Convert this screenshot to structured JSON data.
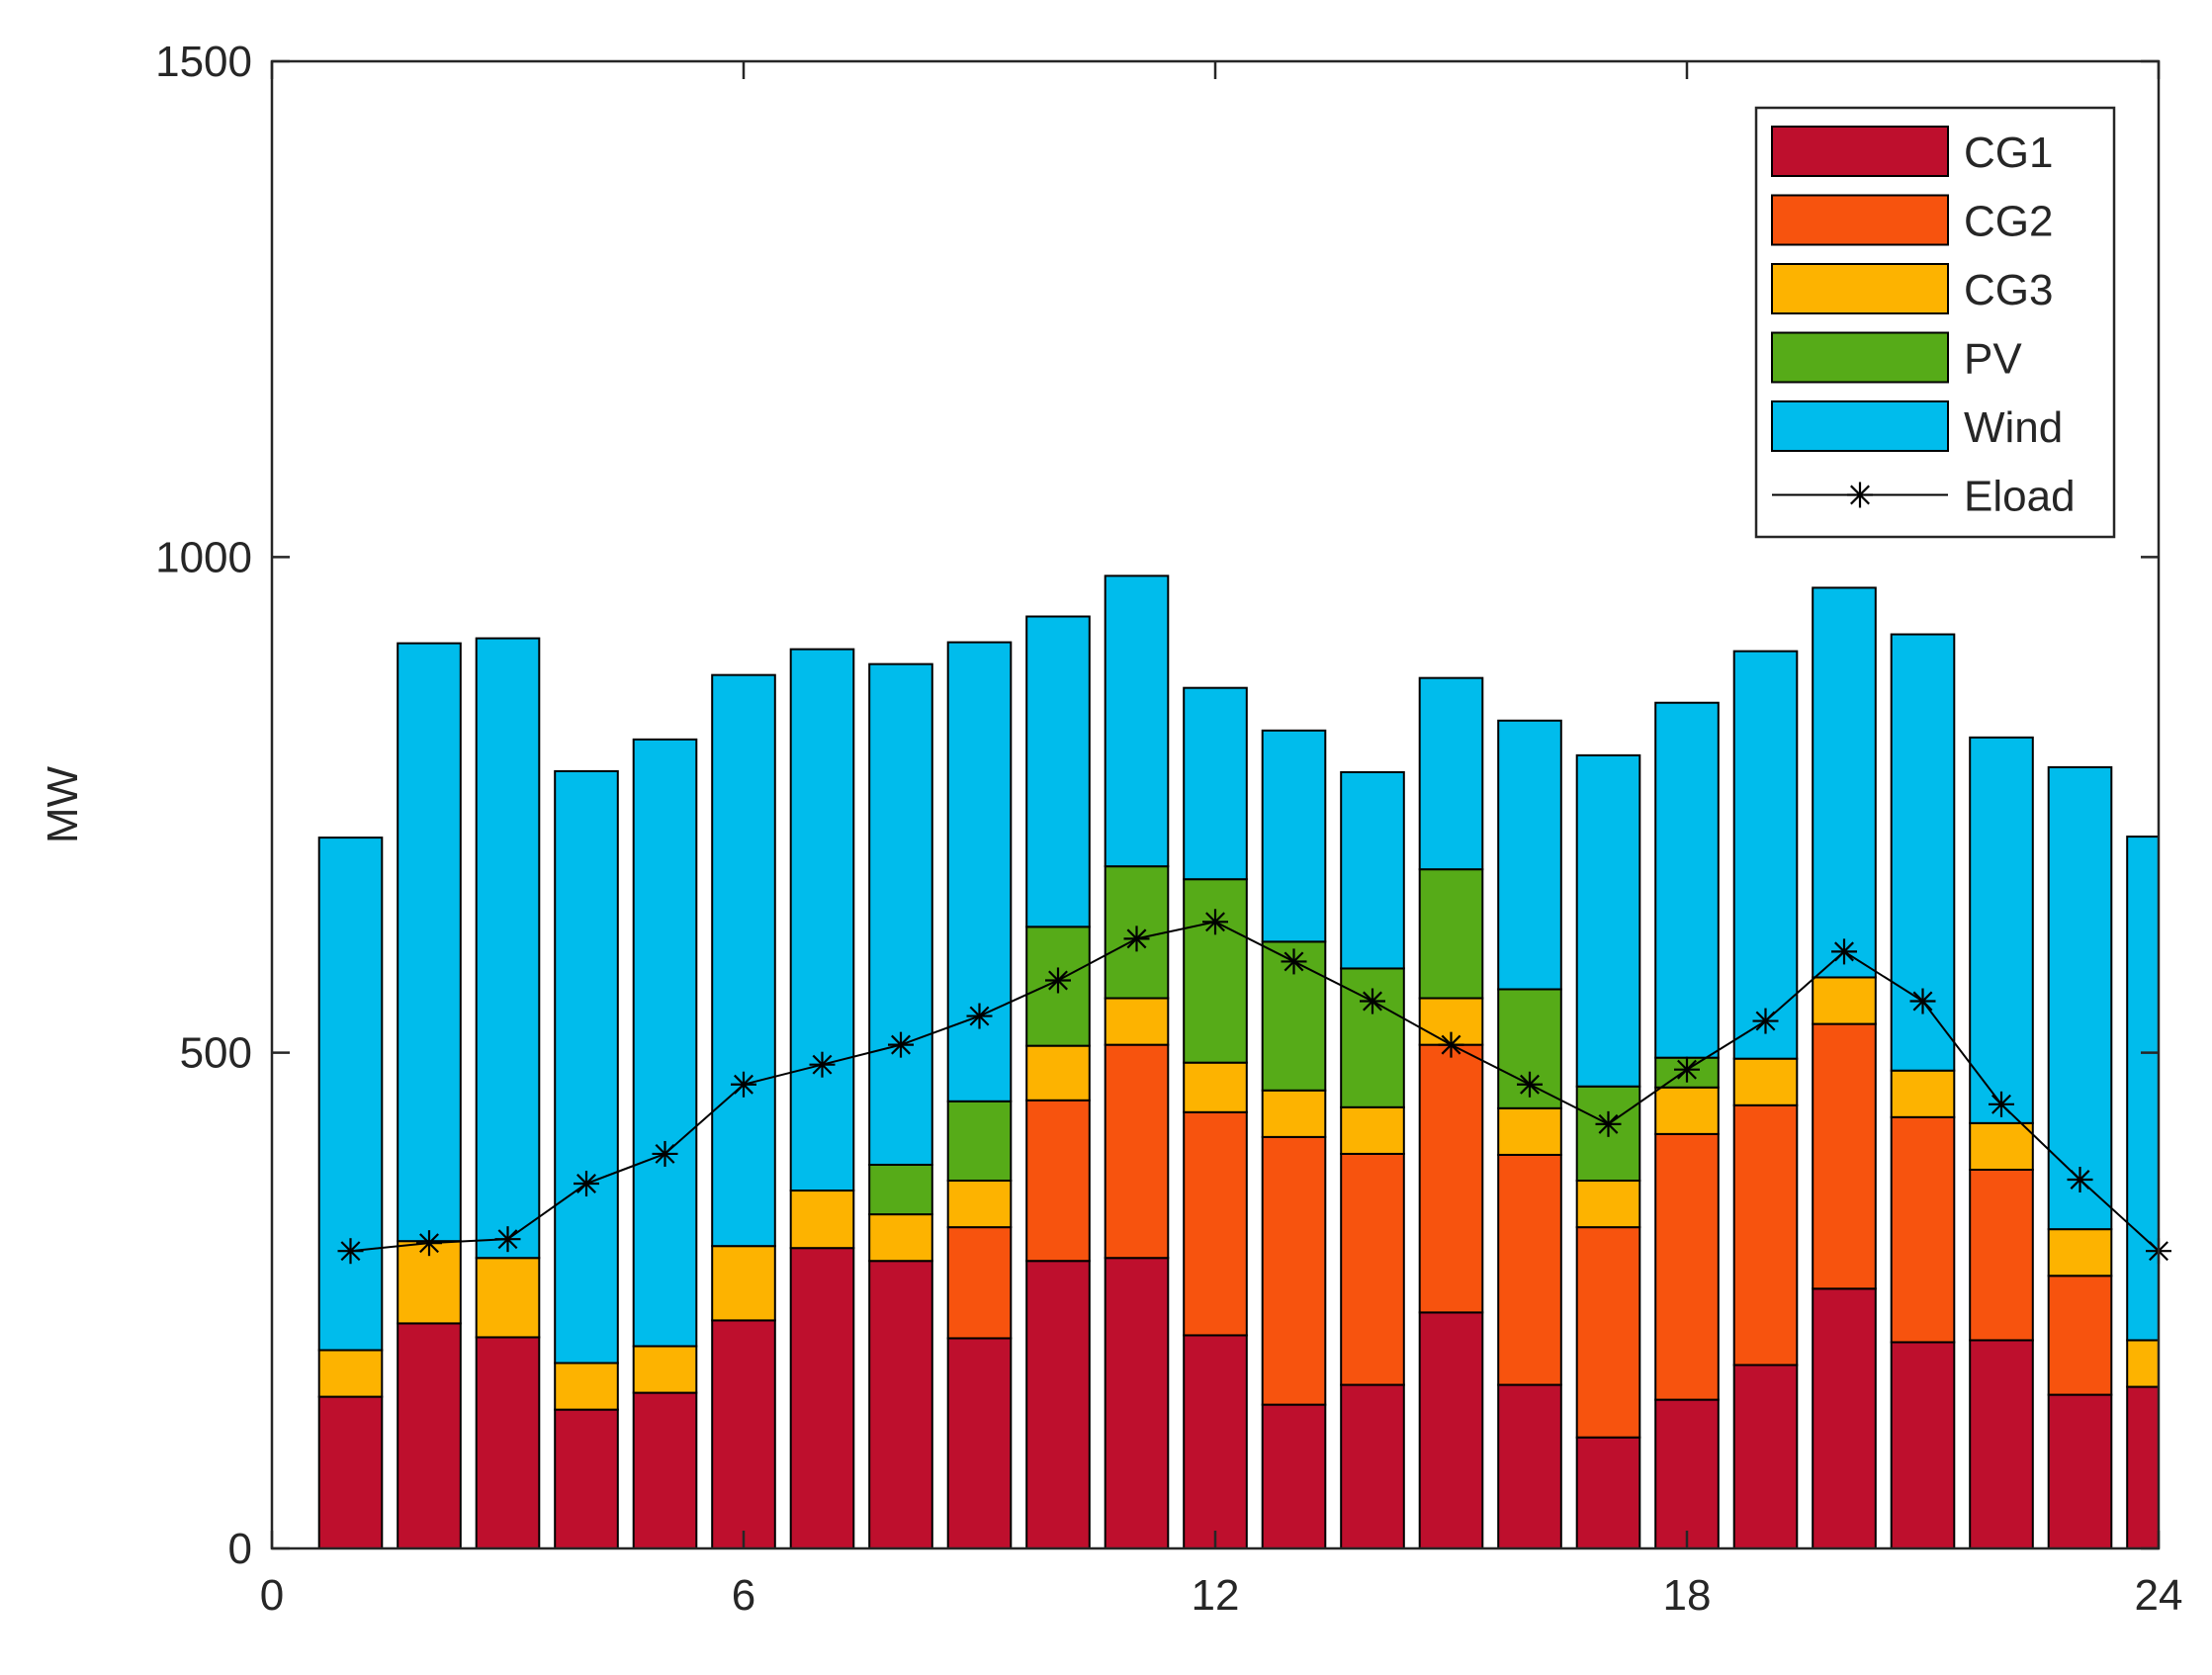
{
  "chart_data": {
    "type": "bar",
    "stacked": true,
    "title": "",
    "xlabel": "",
    "ylabel": "MW",
    "xlim": [
      0,
      24
    ],
    "ylim": [
      0,
      1500
    ],
    "xticks": [
      0,
      6,
      12,
      18,
      24
    ],
    "yticks": [
      0,
      500,
      1000,
      1500
    ],
    "legend_position": "top-right",
    "categories": [
      1,
      2,
      3,
      4,
      5,
      6,
      7,
      8,
      9,
      10,
      11,
      12,
      13,
      14,
      15,
      16,
      17,
      18,
      19,
      20,
      21,
      22,
      23,
      24
    ],
    "series": [
      {
        "name": "CG1",
        "color": "#BE0F2D",
        "values": [
          153,
          227,
          213,
          140,
          157,
          230,
          303,
          290,
          212,
          290,
          293,
          215,
          145,
          165,
          238,
          165,
          112,
          150,
          185,
          262,
          208,
          210,
          155,
          163
        ]
      },
      {
        "name": "CG2",
        "color": "#F7530E",
        "values": [
          0,
          0,
          0,
          0,
          0,
          0,
          0,
          0,
          112,
          162,
          215,
          225,
          270,
          233,
          270,
          232,
          212,
          268,
          262,
          267,
          227,
          172,
          120,
          0
        ]
      },
      {
        "name": "CG3",
        "color": "#FDB300",
        "values": [
          47,
          83,
          80,
          47,
          47,
          75,
          58,
          47,
          47,
          55,
          47,
          50,
          47,
          47,
          47,
          47,
          47,
          47,
          47,
          47,
          47,
          47,
          47,
          47
        ]
      },
      {
        "name": "PV",
        "color": "#56AB18",
        "values": [
          0,
          0,
          0,
          0,
          0,
          0,
          0,
          50,
          80,
          120,
          133,
          185,
          150,
          140,
          130,
          120,
          95,
          30,
          0,
          0,
          0,
          0,
          0,
          0
        ]
      },
      {
        "name": "Wind",
        "color": "#00BCEC",
        "values": [
          517,
          603,
          625,
          597,
          612,
          576,
          546,
          505,
          463,
          313,
          293,
          193,
          213,
          198,
          193,
          271,
          334,
          358,
          411,
          393,
          440,
          389,
          466,
          508
        ]
      },
      {
        "name": "Eload",
        "type": "line",
        "color": "#000000",
        "values": [
          300,
          308,
          312,
          368,
          398,
          468,
          488,
          508,
          537,
          573,
          615,
          632,
          592,
          552,
          508,
          468,
          428,
          483,
          532,
          602,
          552,
          448,
          372,
          300
        ]
      }
    ]
  }
}
